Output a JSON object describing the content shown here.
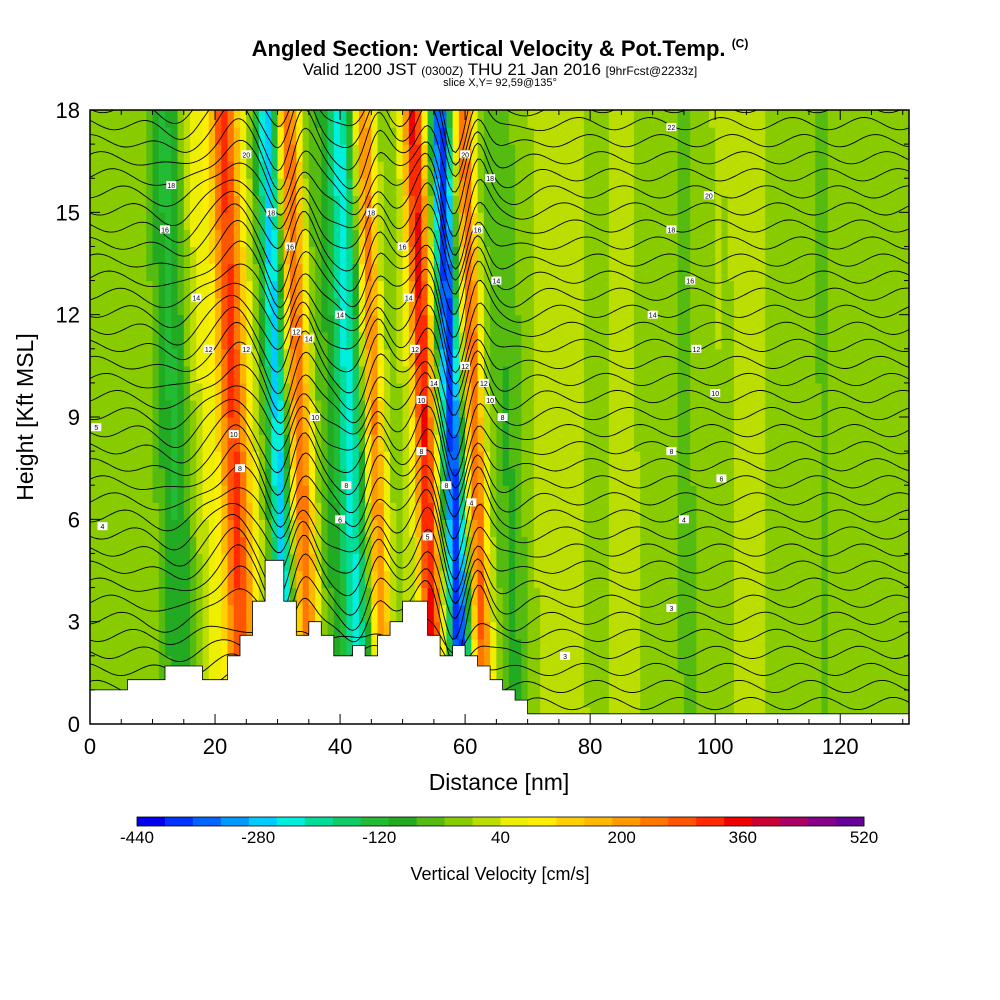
{
  "title": {
    "main": "Angled Section: Vertical Velocity & Pot.Temp.",
    "main_suffix": "(C)",
    "valid_prefix": "Valid 1200 JST",
    "valid_zulu": "(0300Z)",
    "valid_date": "THU 21 Jan 2016",
    "valid_fcst": "[9hrFcst@2233z]",
    "slice": "slice X,Y= 92,59@135°"
  },
  "chart_data": {
    "type": "heatmap",
    "xlabel": "Distance [nm]",
    "ylabel": "Height [Kft MSL]",
    "xlim": [
      0,
      131
    ],
    "ylim": [
      0,
      18
    ],
    "x_ticks": [
      "0",
      "20",
      "40",
      "60",
      "80",
      "100",
      "120"
    ],
    "y_ticks": [
      "0",
      "3",
      "6",
      "9",
      "12",
      "15",
      "18"
    ],
    "bands": [
      {
        "x": 23.5,
        "w": 2.6,
        "value": 330
      },
      {
        "x": 30.5,
        "w": 1.8,
        "value": -300
      },
      {
        "x": 34.0,
        "w": 1.8,
        "value": 300
      },
      {
        "x": 42.0,
        "w": 2.2,
        "value": -240
      },
      {
        "x": 46.0,
        "w": 1.5,
        "value": 260
      },
      {
        "x": 54.0,
        "w": 1.8,
        "value": 380
      },
      {
        "x": 58.3,
        "w": 1.6,
        "value": -430
      },
      {
        "x": 62.0,
        "w": 1.5,
        "value": 300
      },
      {
        "x": 14.0,
        "w": 3.0,
        "value": -110
      },
      {
        "x": 18.5,
        "w": 2.0,
        "value": 60
      },
      {
        "x": 38.0,
        "w": 2.0,
        "value": -60
      },
      {
        "x": 67.0,
        "w": 2.5,
        "value": -70
      },
      {
        "x": 75.0,
        "w": 3.0,
        "value": 30
      },
      {
        "x": 85.0,
        "w": 3.0,
        "value": 25
      },
      {
        "x": 95.0,
        "w": 3.0,
        "value": -30
      },
      {
        "x": 105.0,
        "w": 3.5,
        "value": 25
      },
      {
        "x": 118.0,
        "w": 4.0,
        "value": -25
      }
    ],
    "terrain": [
      [
        0,
        1.0
      ],
      [
        6,
        1.0
      ],
      [
        6,
        1.3
      ],
      [
        12,
        1.3
      ],
      [
        12,
        1.7
      ],
      [
        18,
        1.7
      ],
      [
        18,
        1.3
      ],
      [
        22,
        1.3
      ],
      [
        22,
        2.0
      ],
      [
        24,
        2.0
      ],
      [
        24,
        2.6
      ],
      [
        26,
        2.6
      ],
      [
        26,
        3.6
      ],
      [
        28,
        3.6
      ],
      [
        28,
        4.8
      ],
      [
        31,
        4.8
      ],
      [
        31,
        3.6
      ],
      [
        33,
        3.6
      ],
      [
        33,
        2.6
      ],
      [
        35,
        2.6
      ],
      [
        35,
        3.0
      ],
      [
        37,
        3.0
      ],
      [
        37,
        2.6
      ],
      [
        39,
        2.6
      ],
      [
        39,
        2.0
      ],
      [
        42,
        2.0
      ],
      [
        42,
        2.3
      ],
      [
        44,
        2.3
      ],
      [
        44,
        2.0
      ],
      [
        46,
        2.0
      ],
      [
        46,
        2.6
      ],
      [
        48,
        2.6
      ],
      [
        48,
        3.0
      ],
      [
        50,
        3.0
      ],
      [
        50,
        3.6
      ],
      [
        54,
        3.6
      ],
      [
        54,
        2.6
      ],
      [
        56,
        2.6
      ],
      [
        56,
        2.0
      ],
      [
        58,
        2.0
      ],
      [
        58,
        2.3
      ],
      [
        60,
        2.3
      ],
      [
        60,
        2.0
      ],
      [
        62,
        2.0
      ],
      [
        62,
        1.7
      ],
      [
        64,
        1.7
      ],
      [
        64,
        1.3
      ],
      [
        66,
        1.3
      ],
      [
        66,
        1.0
      ],
      [
        68,
        1.0
      ],
      [
        68,
        0.7
      ],
      [
        70,
        0.7
      ],
      [
        70,
        0.3
      ],
      [
        131,
        0.3
      ]
    ],
    "contour_labels": [
      {
        "x": 1,
        "y": 8.7,
        "text": "5"
      },
      {
        "x": 2,
        "y": 5.8,
        "text": "4"
      },
      {
        "x": 13,
        "y": 15.8,
        "text": "18"
      },
      {
        "x": 12,
        "y": 14.5,
        "text": "16"
      },
      {
        "x": 17,
        "y": 12.5,
        "text": "14"
      },
      {
        "x": 19,
        "y": 11.0,
        "text": "12"
      },
      {
        "x": 23,
        "y": 8.5,
        "text": "10"
      },
      {
        "x": 24,
        "y": 7.5,
        "text": "8"
      },
      {
        "x": 25,
        "y": 11.0,
        "text": "12"
      },
      {
        "x": 25,
        "y": 16.7,
        "text": "20"
      },
      {
        "x": 29,
        "y": 15.0,
        "text": "18"
      },
      {
        "x": 32,
        "y": 14.0,
        "text": "16"
      },
      {
        "x": 33,
        "y": 11.5,
        "text": "12"
      },
      {
        "x": 35,
        "y": 11.3,
        "text": "14"
      },
      {
        "x": 36,
        "y": 9.0,
        "text": "10"
      },
      {
        "x": 40,
        "y": 12.0,
        "text": "14"
      },
      {
        "x": 41,
        "y": 7.0,
        "text": "8"
      },
      {
        "x": 40,
        "y": 6.0,
        "text": "6"
      },
      {
        "x": 45,
        "y": 15.0,
        "text": "18"
      },
      {
        "x": 50,
        "y": 14.0,
        "text": "16"
      },
      {
        "x": 51,
        "y": 12.5,
        "text": "14"
      },
      {
        "x": 52,
        "y": 11.0,
        "text": "12"
      },
      {
        "x": 53,
        "y": 9.5,
        "text": "10"
      },
      {
        "x": 53,
        "y": 8.0,
        "text": "8"
      },
      {
        "x": 54,
        "y": 5.5,
        "text": "5"
      },
      {
        "x": 55,
        "y": 10.0,
        "text": "14"
      },
      {
        "x": 57,
        "y": 7.0,
        "text": "8"
      },
      {
        "x": 60,
        "y": 16.7,
        "text": "20"
      },
      {
        "x": 64,
        "y": 16.0,
        "text": "18"
      },
      {
        "x": 62,
        "y": 14.5,
        "text": "16"
      },
      {
        "x": 65,
        "y": 13.0,
        "text": "14"
      },
      {
        "x": 60,
        "y": 10.5,
        "text": "12"
      },
      {
        "x": 63,
        "y": 10.0,
        "text": "12"
      },
      {
        "x": 64,
        "y": 9.5,
        "text": "10"
      },
      {
        "x": 66,
        "y": 9.0,
        "text": "8"
      },
      {
        "x": 61,
        "y": 6.5,
        "text": "4"
      },
      {
        "x": 76,
        "y": 2.0,
        "text": "3"
      },
      {
        "x": 93,
        "y": 17.5,
        "text": "22"
      },
      {
        "x": 99,
        "y": 15.5,
        "text": "20"
      },
      {
        "x": 93,
        "y": 14.5,
        "text": "18"
      },
      {
        "x": 96,
        "y": 13.0,
        "text": "16"
      },
      {
        "x": 90,
        "y": 12.0,
        "text": "14"
      },
      {
        "x": 97,
        "y": 11.0,
        "text": "12"
      },
      {
        "x": 100,
        "y": 9.7,
        "text": "10"
      },
      {
        "x": 93,
        "y": 8.0,
        "text": "8"
      },
      {
        "x": 101,
        "y": 7.2,
        "text": "6"
      },
      {
        "x": 95,
        "y": 6.0,
        "text": "4"
      },
      {
        "x": 93,
        "y": 3.4,
        "text": "3"
      }
    ],
    "colorbar": {
      "min": -440,
      "max": 520,
      "step": 40,
      "labels": [
        "-440",
        "-280",
        "-120",
        "40",
        "200",
        "360",
        "520"
      ],
      "title": "Vertical Velocity [cm/s]",
      "colors": [
        "#0000ee",
        "#0033ff",
        "#0066ff",
        "#0099ff",
        "#00ccff",
        "#00eedd",
        "#00dd99",
        "#11cc66",
        "#22bb33",
        "#22aa22",
        "#55bb11",
        "#88cc00",
        "#bbdd00",
        "#eeee00",
        "#ffee00",
        "#ffd000",
        "#ffb800",
        "#ff9900",
        "#ff7700",
        "#ff5500",
        "#ff2a00",
        "#ee0000",
        "#cc0033",
        "#aa0066",
        "#880088",
        "#660099"
      ]
    }
  }
}
